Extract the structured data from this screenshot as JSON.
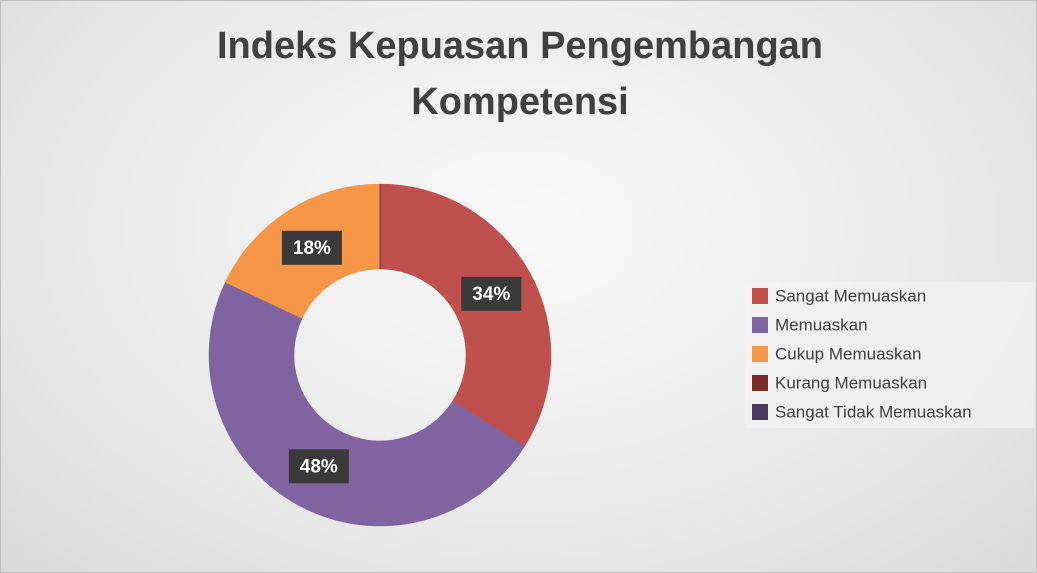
{
  "chart_data": {
    "type": "donut",
    "title": "Indeks Kepuasan Pengembangan Kompetensi",
    "categories": [
      "Sangat Memuaskan",
      "Memuaskan",
      "Cukup Memuaskan",
      "Kurang Memuaskan",
      "Sangat Tidak Memuaskan"
    ],
    "values": [
      34,
      48,
      18,
      0,
      0
    ],
    "value_labels": [
      "34%",
      "48%",
      "18%",
      null,
      null
    ],
    "colors": [
      "#c0504d",
      "#8064a2",
      "#f79646",
      "#772c2a",
      "#4d3b62"
    ],
    "legend": "right"
  }
}
